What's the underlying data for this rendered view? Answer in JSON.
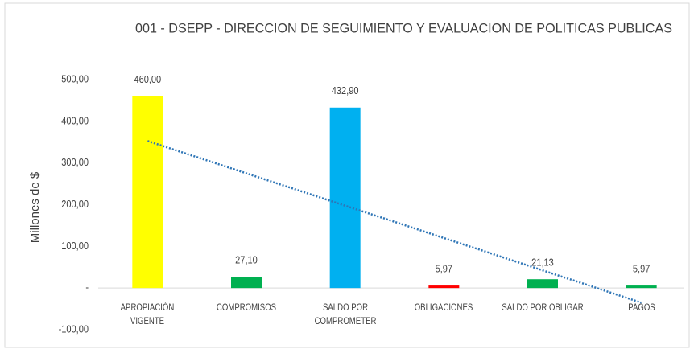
{
  "chart_data": {
    "type": "bar",
    "title": "001 - DSEPP - DIRECCION DE SEGUIMIENTO Y EVALUACION DE POLITICAS PUBLICAS",
    "y_label": "Millones de $",
    "categories": [
      "APROPIACIÓN VIGENTE",
      "COMPROMISOS",
      "SALDO POR COMPROMETER",
      "OBLIGACIONES",
      "SALDO POR OBLIGAR",
      "PAGOS"
    ],
    "values": [
      460,
      27.1,
      432.9,
      5.97,
      21.13,
      5.97
    ],
    "value_labels": [
      "460,00",
      "27,10",
      "432,90",
      "5,97",
      "21,13",
      "5,97"
    ],
    "colors": [
      "#ffff00",
      "#00b050",
      "#00b0f0",
      "#ff0000",
      "#00b050",
      "#00b050"
    ],
    "ylim": [
      -100,
      500
    ],
    "yticks": [
      {
        "value": -100,
        "label": "-100,00"
      },
      {
        "value": 0,
        "label": "-"
      },
      {
        "value": 100,
        "label": "100,00"
      },
      {
        "value": 200,
        "label": "200,00"
      },
      {
        "value": 300,
        "label": "300,00"
      },
      {
        "value": 400,
        "label": "400,00"
      },
      {
        "value": 500,
        "label": "500,00"
      }
    ],
    "trendline": "linear",
    "trendline_color": "#2e75b6"
  }
}
